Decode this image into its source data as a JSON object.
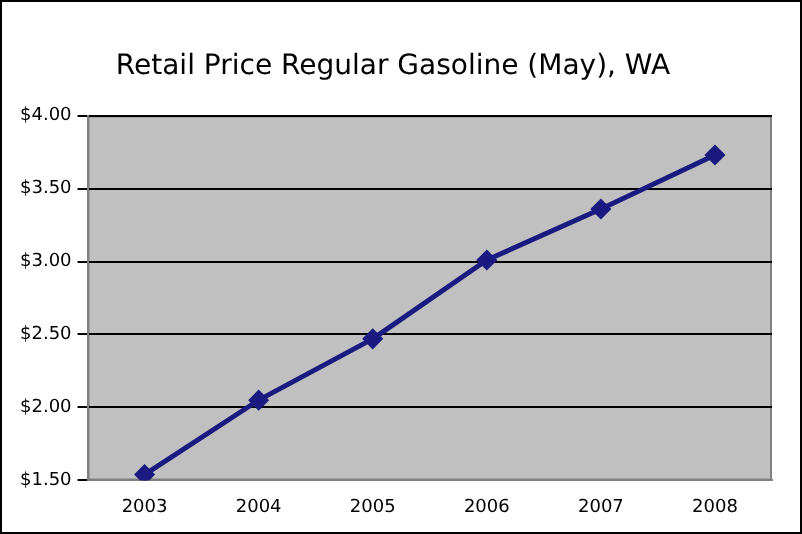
{
  "chart_data": {
    "type": "line",
    "title": "Retail Price Regular Gasoline (May), WA",
    "categories": [
      "2003",
      "2004",
      "2005",
      "2006",
      "2007",
      "2008"
    ],
    "series": [
      {
        "color": "#1a1a80",
        "values": [
          1.54,
          2.05,
          2.47,
          3.01,
          3.36,
          3.73
        ]
      }
    ],
    "ylim": [
      1.5,
      4
    ],
    "yticks": [
      {
        "value": 1.5,
        "label": "$1.50"
      },
      {
        "value": 2,
        "label": "$2.00"
      },
      {
        "value": 2.5,
        "label": "$2.50"
      },
      {
        "value": 3,
        "label": "$3.00"
      },
      {
        "value": 3.5,
        "label": "$3.50"
      },
      {
        "value": 4,
        "label": "$4.00"
      }
    ],
    "grid": "y",
    "legend": false,
    "marker": "diamond",
    "line_style": "solid"
  }
}
